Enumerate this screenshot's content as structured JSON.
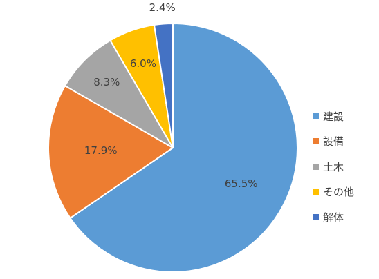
{
  "chart_data": {
    "type": "pie",
    "title": "",
    "start_angle_deg": 0,
    "direction": "clockwise",
    "slices": [
      {
        "label": "建設",
        "value": 65.5,
        "value_label": "65.5%",
        "color": "#5B9BD5"
      },
      {
        "label": "設備",
        "value": 17.9,
        "value_label": "17.9%",
        "color": "#ED7D31"
      },
      {
        "label": "土木",
        "value": 8.3,
        "value_label": "8.3%",
        "color": "#A5A5A5"
      },
      {
        "label": "その他",
        "value": 6.0,
        "value_label": "6.0%",
        "color": "#FFC000"
      },
      {
        "label": "解体",
        "value": 2.4,
        "value_label": "2.4%",
        "color": "#4472C4"
      }
    ],
    "legend_position": "right"
  }
}
